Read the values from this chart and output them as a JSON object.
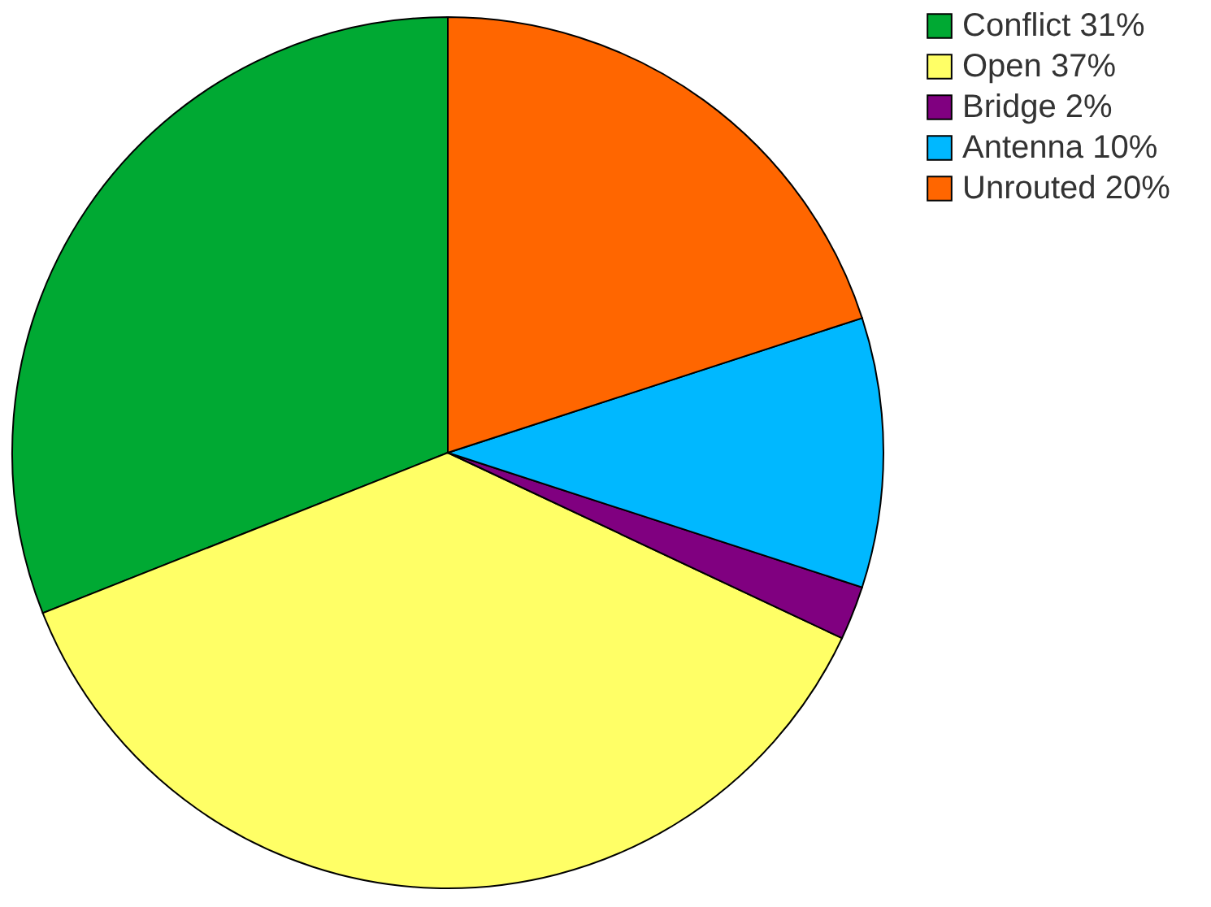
{
  "chart_data": {
    "type": "pie",
    "categories": [
      "Conflict 31%",
      "Open 37%",
      "Bridge 2%",
      "Antenna 10%",
      "Unrouted 20%"
    ],
    "values": [
      31,
      37,
      2,
      10,
      20
    ],
    "colors": [
      "#00a933",
      "#ffff66",
      "#800080",
      "#00b8ff",
      "#ff6600"
    ],
    "legend": "right"
  }
}
